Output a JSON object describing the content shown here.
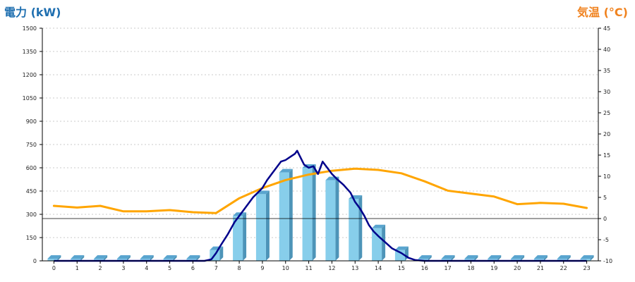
{
  "chart_data": {
    "type": "bar",
    "titles": {
      "left": "電力 (kW)",
      "right": "気温 (°C)"
    },
    "colors": {
      "left_title": "#1f6fb0",
      "right_title": "#f0821e",
      "bar_front": "#87ceeb",
      "bar_side": "#4d94b8",
      "bar_top": "#5aa5cf",
      "power_line": "#00008b",
      "temp_line": "#ffa500",
      "grid": "#bbbbbb"
    },
    "x": {
      "categories": [
        "0",
        "1",
        "2",
        "3",
        "4",
        "5",
        "6",
        "7",
        "8",
        "9",
        "10",
        "11",
        "12",
        "13",
        "14",
        "15",
        "16",
        "17",
        "18",
        "19",
        "20",
        "21",
        "22",
        "23"
      ]
    },
    "y_left": {
      "range": [
        0,
        1500
      ],
      "ticks": [
        0,
        150,
        300,
        450,
        600,
        750,
        900,
        1050,
        1200,
        1350,
        1500
      ]
    },
    "y_right": {
      "range": [
        -10,
        45
      ],
      "ticks": [
        -10,
        -5,
        0,
        5,
        10,
        15,
        20,
        25,
        30,
        35,
        40,
        45
      ]
    },
    "grid": true,
    "series": [
      {
        "kind": "bar",
        "axis": "left",
        "values": [
          0,
          0,
          0,
          0,
          0,
          0,
          0,
          70,
          290,
          430,
          570,
          600,
          520,
          400,
          210,
          70,
          0,
          0,
          0,
          0,
          0,
          0,
          0,
          0
        ]
      },
      {
        "kind": "line",
        "axis": "left",
        "points": [
          [
            0,
            0
          ],
          [
            1,
            0
          ],
          [
            2,
            0
          ],
          [
            3,
            0
          ],
          [
            4,
            0
          ],
          [
            5,
            0
          ],
          [
            6,
            0
          ],
          [
            6.5,
            0
          ],
          [
            6.8,
            10
          ],
          [
            7,
            50
          ],
          [
            7.2,
            100
          ],
          [
            7.5,
            170
          ],
          [
            7.8,
            250
          ],
          [
            8,
            290
          ],
          [
            8.3,
            350
          ],
          [
            8.6,
            410
          ],
          [
            8.8,
            440
          ],
          [
            9,
            470
          ],
          [
            9.2,
            520
          ],
          [
            9.4,
            560
          ],
          [
            9.6,
            600
          ],
          [
            9.8,
            640
          ],
          [
            10,
            650
          ],
          [
            10.2,
            670
          ],
          [
            10.4,
            690
          ],
          [
            10.5,
            710
          ],
          [
            10.6,
            680
          ],
          [
            10.8,
            620
          ],
          [
            11,
            600
          ],
          [
            11.2,
            610
          ],
          [
            11.4,
            560
          ],
          [
            11.6,
            640
          ],
          [
            11.8,
            600
          ],
          [
            12,
            560
          ],
          [
            12.2,
            530
          ],
          [
            12.5,
            490
          ],
          [
            12.8,
            440
          ],
          [
            13,
            380
          ],
          [
            13.2,
            340
          ],
          [
            13.4,
            290
          ],
          [
            13.6,
            230
          ],
          [
            13.8,
            190
          ],
          [
            14,
            160
          ],
          [
            14.3,
            120
          ],
          [
            14.6,
            80
          ],
          [
            15,
            50
          ],
          [
            15.3,
            20
          ],
          [
            15.6,
            5
          ],
          [
            16,
            0
          ],
          [
            17,
            0
          ],
          [
            18,
            0
          ],
          [
            19,
            0
          ],
          [
            20,
            0
          ],
          [
            21,
            0
          ],
          [
            22,
            0
          ],
          [
            23,
            0
          ]
        ]
      },
      {
        "kind": "line",
        "axis": "right",
        "points": [
          [
            0,
            3
          ],
          [
            1,
            2.6
          ],
          [
            2,
            3
          ],
          [
            3,
            1.7
          ],
          [
            4,
            1.7
          ],
          [
            5,
            2
          ],
          [
            6,
            1.5
          ],
          [
            7,
            1.3
          ],
          [
            8,
            4.8
          ],
          [
            9,
            7.2
          ],
          [
            10,
            9.1
          ],
          [
            11,
            10.4
          ],
          [
            12,
            11.3
          ],
          [
            13,
            11.8
          ],
          [
            14,
            11.5
          ],
          [
            15,
            10.7
          ],
          [
            16,
            8.8
          ],
          [
            17,
            6.6
          ],
          [
            18,
            5.9
          ],
          [
            19,
            5.2
          ],
          [
            20,
            3.4
          ],
          [
            21,
            3.7
          ],
          [
            22,
            3.5
          ],
          [
            23,
            2.5
          ]
        ]
      }
    ]
  }
}
